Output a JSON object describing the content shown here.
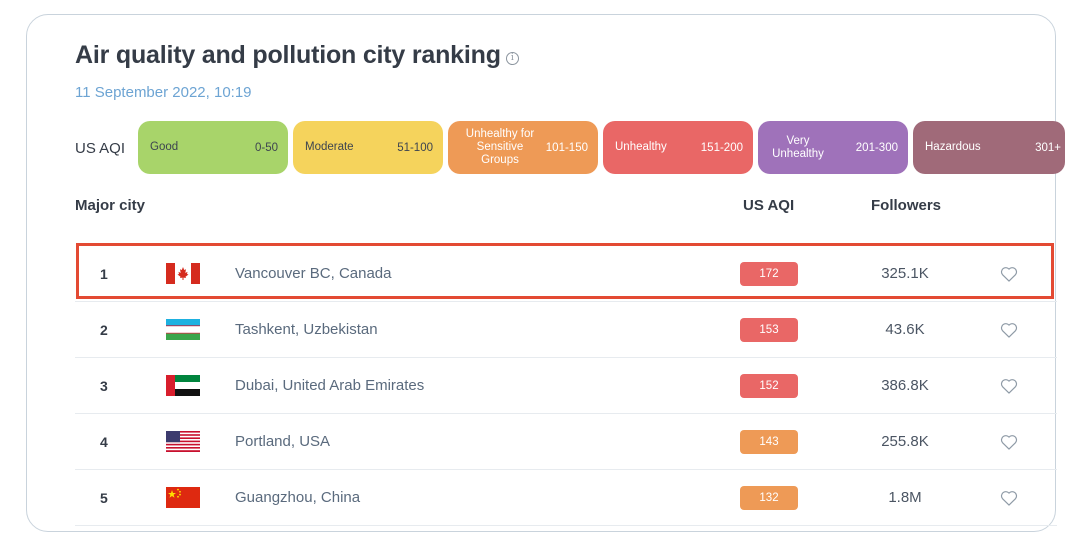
{
  "header": {
    "title": "Air quality and pollution city ranking",
    "info_icon": "i",
    "date": "11 September 2022, 10:19"
  },
  "legend": {
    "label": "US AQI",
    "levels": [
      {
        "name": "Good",
        "range": "0-50",
        "color": "#a8d46a"
      },
      {
        "name": "Moderate",
        "range": "51-100",
        "color": "#f5d35c"
      },
      {
        "name": "Unhealthy for Sensitive Groups",
        "range": "101-150",
        "color": "#ee9a56"
      },
      {
        "name": "Unhealthy",
        "range": "151-200",
        "color": "#e96766"
      },
      {
        "name": "Very Unhealthy",
        "range": "201-300",
        "color": "#9f72ba"
      },
      {
        "name": "Hazardous",
        "range": "301+",
        "color": "#a06a79"
      }
    ]
  },
  "table": {
    "columns": {
      "city": "Major city",
      "aqi": "US AQI",
      "followers": "Followers"
    },
    "rows": [
      {
        "rank": "1",
        "flag": "canada-flag-icon",
        "city": "Vancouver BC, Canada",
        "aqi": "172",
        "aqi_color": "#e96766",
        "followers": "325.1K",
        "highlighted": true
      },
      {
        "rank": "2",
        "flag": "uzbekistan-flag-icon",
        "city": "Tashkent, Uzbekistan",
        "aqi": "153",
        "aqi_color": "#e96766",
        "followers": "43.6K"
      },
      {
        "rank": "3",
        "flag": "uae-flag-icon",
        "city": "Dubai, United Arab Emirates",
        "aqi": "152",
        "aqi_color": "#e96766",
        "followers": "386.8K"
      },
      {
        "rank": "4",
        "flag": "usa-flag-icon",
        "city": "Portland, USA",
        "aqi": "143",
        "aqi_color": "#ee9a56",
        "followers": "255.8K"
      },
      {
        "rank": "5",
        "flag": "china-flag-icon",
        "city": "Guangzhou, China",
        "aqi": "132",
        "aqi_color": "#ee9a56",
        "followers": "1.8M"
      }
    ]
  },
  "colors": {
    "highlight_border": "#e34a33",
    "date_text": "#6da4d3"
  }
}
